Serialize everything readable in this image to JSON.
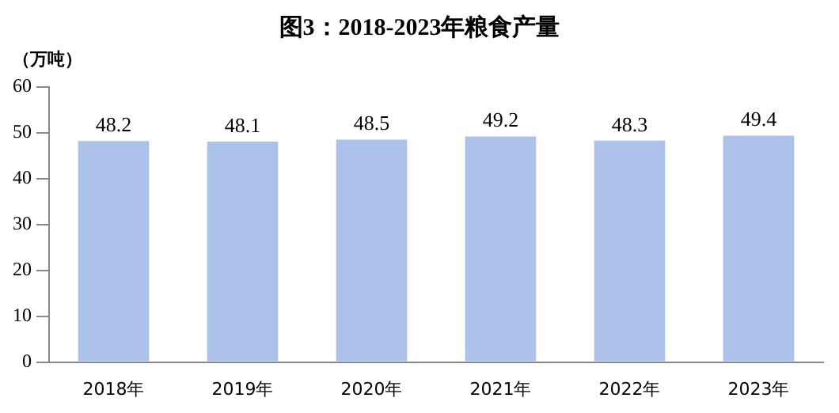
{
  "chart_data": {
    "type": "bar",
    "title": "图3：2018-2023年粮食产量",
    "ylabel": "（万吨）",
    "categories": [
      "2018年",
      "2019年",
      "2020年",
      "2021年",
      "2022年",
      "2023年"
    ],
    "values": [
      48.2,
      48.1,
      48.5,
      49.2,
      48.3,
      49.4
    ],
    "color": "#adc2ea",
    "ylim": [
      0,
      60
    ],
    "yticks": [
      0,
      10,
      20,
      30,
      40,
      50,
      60
    ],
    "grid": false,
    "legend": false,
    "data_labels": true
  }
}
